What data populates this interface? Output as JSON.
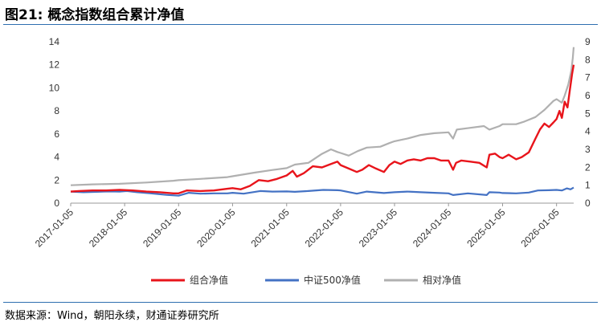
{
  "title": "图21: 概念指数组合累计净值",
  "source": "数据来源：Wind，朝阳永续，财通证券研究所",
  "chart_data": {
    "type": "line",
    "title": "图21: 概念指数组合累计净值",
    "xlabel": "",
    "ylabel": "",
    "x_ticks": [
      "2017-01-05",
      "2018-01-05",
      "2019-01-05",
      "2020-01-05",
      "2021-01-05",
      "2022-01-05",
      "2023-01-05",
      "2024-01-05",
      "2025-01-05",
      "2026-01-05"
    ],
    "x_range": [
      "2017-01-05",
      "2026-05-01"
    ],
    "y_left": {
      "range": [
        0,
        14
      ],
      "ticks": [
        "0",
        "2",
        "4",
        "6",
        "8",
        "10",
        "12",
        "14"
      ]
    },
    "y_right": {
      "range": [
        0,
        9
      ],
      "ticks": [
        "0",
        "1",
        "2",
        "3",
        "4",
        "5",
        "6",
        "7",
        "8",
        "9"
      ]
    },
    "legend_position": "bottom-center",
    "grid": false,
    "series": [
      {
        "name": "组合净值",
        "axis": "left",
        "color": "#e8141b",
        "points": [
          [
            "2017-01-05",
            1.0
          ],
          [
            "2017-03-01",
            1.05
          ],
          [
            "2017-06-01",
            1.1
          ],
          [
            "2017-09-01",
            1.1
          ],
          [
            "2017-12-01",
            1.15
          ],
          [
            "2018-03-01",
            1.1
          ],
          [
            "2018-06-01",
            1.0
          ],
          [
            "2018-09-01",
            0.95
          ],
          [
            "2018-12-01",
            0.85
          ],
          [
            "2019-01-05",
            0.85
          ],
          [
            "2019-03-01",
            1.1
          ],
          [
            "2019-06-01",
            1.05
          ],
          [
            "2019-09-01",
            1.1
          ],
          [
            "2019-12-01",
            1.25
          ],
          [
            "2020-01-05",
            1.3
          ],
          [
            "2020-03-01",
            1.2
          ],
          [
            "2020-05-01",
            1.5
          ],
          [
            "2020-07-01",
            2.0
          ],
          [
            "2020-09-01",
            1.9
          ],
          [
            "2020-11-01",
            2.1
          ],
          [
            "2021-01-05",
            2.4
          ],
          [
            "2021-02-15",
            2.8
          ],
          [
            "2021-03-15",
            2.3
          ],
          [
            "2021-05-01",
            2.6
          ],
          [
            "2021-07-01",
            3.2
          ],
          [
            "2021-09-01",
            3.1
          ],
          [
            "2021-11-01",
            3.4
          ],
          [
            "2021-12-15",
            3.6
          ],
          [
            "2022-01-05",
            3.3
          ],
          [
            "2022-03-01",
            3.0
          ],
          [
            "2022-04-25",
            2.7
          ],
          [
            "2022-06-01",
            2.9
          ],
          [
            "2022-07-15",
            3.3
          ],
          [
            "2022-09-01",
            3.0
          ],
          [
            "2022-10-25",
            2.7
          ],
          [
            "2022-12-01",
            3.3
          ],
          [
            "2023-01-05",
            3.6
          ],
          [
            "2023-02-15",
            3.4
          ],
          [
            "2023-04-01",
            3.7
          ],
          [
            "2023-05-15",
            3.8
          ],
          [
            "2023-07-01",
            3.7
          ],
          [
            "2023-08-15",
            3.9
          ],
          [
            "2023-10-01",
            3.9
          ],
          [
            "2023-11-15",
            3.7
          ],
          [
            "2024-01-05",
            3.7
          ],
          [
            "2024-02-05",
            2.9
          ],
          [
            "2024-02-25",
            3.5
          ],
          [
            "2024-04-01",
            3.7
          ],
          [
            "2024-06-01",
            3.6
          ],
          [
            "2024-08-01",
            3.5
          ],
          [
            "2024-09-20",
            3.1
          ],
          [
            "2024-10-08",
            4.2
          ],
          [
            "2024-11-15",
            4.3
          ],
          [
            "2024-12-15",
            4.0
          ],
          [
            "2025-01-05",
            3.9
          ],
          [
            "2025-02-15",
            4.2
          ],
          [
            "2025-04-07",
            3.8
          ],
          [
            "2025-05-15",
            4.0
          ],
          [
            "2025-07-01",
            4.4
          ],
          [
            "2025-08-15",
            5.6
          ],
          [
            "2025-09-15",
            6.4
          ],
          [
            "2025-10-15",
            6.9
          ],
          [
            "2025-11-15",
            6.6
          ],
          [
            "2025-12-15",
            7.0
          ],
          [
            "2026-01-05",
            7.3
          ],
          [
            "2026-01-25",
            8.0
          ],
          [
            "2026-02-10",
            7.4
          ],
          [
            "2026-03-01",
            8.8
          ],
          [
            "2026-03-20",
            8.3
          ],
          [
            "2026-04-05",
            9.8
          ],
          [
            "2026-04-20",
            11.2
          ],
          [
            "2026-05-01",
            12.0
          ]
        ]
      },
      {
        "name": "中证500净值",
        "axis": "left",
        "color": "#4472c4",
        "points": [
          [
            "2017-01-05",
            1.0
          ],
          [
            "2017-04-01",
            0.95
          ],
          [
            "2017-07-01",
            0.98
          ],
          [
            "2017-10-01",
            1.02
          ],
          [
            "2017-12-01",
            1.0
          ],
          [
            "2018-01-20",
            1.05
          ],
          [
            "2018-04-01",
            0.95
          ],
          [
            "2018-07-01",
            0.85
          ],
          [
            "2018-10-15",
            0.72
          ],
          [
            "2019-01-05",
            0.65
          ],
          [
            "2019-03-15",
            0.9
          ],
          [
            "2019-06-01",
            0.82
          ],
          [
            "2019-09-01",
            0.85
          ],
          [
            "2019-12-01",
            0.85
          ],
          [
            "2020-01-05",
            0.9
          ],
          [
            "2020-03-20",
            0.82
          ],
          [
            "2020-07-10",
            1.05
          ],
          [
            "2020-10-01",
            1.0
          ],
          [
            "2021-01-05",
            1.02
          ],
          [
            "2021-03-01",
            0.98
          ],
          [
            "2021-06-01",
            1.05
          ],
          [
            "2021-09-10",
            1.15
          ],
          [
            "2021-12-15",
            1.12
          ],
          [
            "2022-01-05",
            1.1
          ],
          [
            "2022-04-25",
            0.82
          ],
          [
            "2022-07-01",
            1.0
          ],
          [
            "2022-10-25",
            0.88
          ],
          [
            "2023-01-05",
            0.95
          ],
          [
            "2023-04-01",
            1.0
          ],
          [
            "2023-07-01",
            0.95
          ],
          [
            "2023-10-01",
            0.9
          ],
          [
            "2024-01-05",
            0.85
          ],
          [
            "2024-02-05",
            0.7
          ],
          [
            "2024-05-15",
            0.85
          ],
          [
            "2024-09-20",
            0.7
          ],
          [
            "2024-10-08",
            0.95
          ],
          [
            "2024-12-15",
            0.92
          ],
          [
            "2025-01-05",
            0.88
          ],
          [
            "2025-04-07",
            0.85
          ],
          [
            "2025-07-01",
            0.92
          ],
          [
            "2025-09-01",
            1.1
          ],
          [
            "2025-11-15",
            1.12
          ],
          [
            "2026-01-05",
            1.15
          ],
          [
            "2026-02-10",
            1.1
          ],
          [
            "2026-03-15",
            1.28
          ],
          [
            "2026-04-10",
            1.2
          ],
          [
            "2026-05-01",
            1.35
          ]
        ]
      },
      {
        "name": "相对净值",
        "axis": "right",
        "color": "#b0b0b0",
        "points": [
          [
            "2017-01-05",
            1.0
          ],
          [
            "2017-06-01",
            1.05
          ],
          [
            "2017-12-01",
            1.08
          ],
          [
            "2018-06-01",
            1.15
          ],
          [
            "2018-12-01",
            1.25
          ],
          [
            "2019-01-05",
            1.28
          ],
          [
            "2019-06-01",
            1.35
          ],
          [
            "2019-12-01",
            1.45
          ],
          [
            "2020-01-05",
            1.5
          ],
          [
            "2020-06-01",
            1.7
          ],
          [
            "2020-10-01",
            1.85
          ],
          [
            "2021-01-05",
            1.95
          ],
          [
            "2021-03-01",
            2.15
          ],
          [
            "2021-06-01",
            2.25
          ],
          [
            "2021-09-01",
            2.75
          ],
          [
            "2021-11-01",
            3.0
          ],
          [
            "2021-12-15",
            2.85
          ],
          [
            "2022-01-05",
            2.8
          ],
          [
            "2022-03-01",
            2.65
          ],
          [
            "2022-05-01",
            2.9
          ],
          [
            "2022-07-01",
            3.1
          ],
          [
            "2022-10-01",
            3.15
          ],
          [
            "2022-12-01",
            3.35
          ],
          [
            "2023-01-05",
            3.45
          ],
          [
            "2023-04-01",
            3.6
          ],
          [
            "2023-07-01",
            3.8
          ],
          [
            "2023-10-01",
            3.9
          ],
          [
            "2024-01-05",
            3.95
          ],
          [
            "2024-02-05",
            3.6
          ],
          [
            "2024-03-01",
            4.1
          ],
          [
            "2024-06-01",
            4.2
          ],
          [
            "2024-09-01",
            4.3
          ],
          [
            "2024-10-08",
            4.1
          ],
          [
            "2024-12-15",
            4.3
          ],
          [
            "2025-01-05",
            4.4
          ],
          [
            "2025-04-07",
            4.4
          ],
          [
            "2025-06-01",
            4.55
          ],
          [
            "2025-08-15",
            4.8
          ],
          [
            "2025-10-15",
            5.2
          ],
          [
            "2025-12-15",
            5.7
          ],
          [
            "2026-01-05",
            5.8
          ],
          [
            "2026-02-10",
            5.6
          ],
          [
            "2026-03-01",
            6.0
          ],
          [
            "2026-03-25",
            6.6
          ],
          [
            "2026-04-15",
            7.4
          ],
          [
            "2026-04-25",
            8.1
          ],
          [
            "2026-05-01",
            8.7
          ]
        ]
      }
    ]
  }
}
